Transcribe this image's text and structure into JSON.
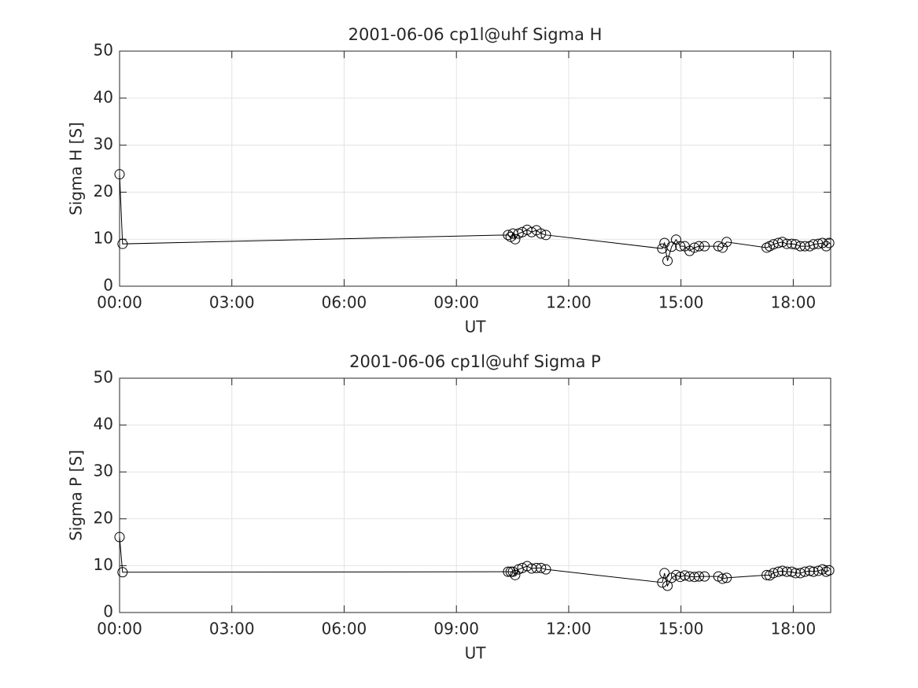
{
  "chart_data": [
    {
      "type": "line",
      "title": "2001-06-06  cp1l@uhf Sigma H",
      "x_label": "UT",
      "y_label": "Sigma H [S]",
      "x": [
        0.0,
        0.08,
        10.38,
        10.45,
        10.51,
        10.57,
        10.66,
        10.76,
        10.89,
        11.01,
        11.14,
        11.26,
        11.39,
        14.5,
        14.56,
        14.64,
        14.75,
        14.87,
        14.98,
        15.1,
        15.23,
        15.36,
        15.48,
        15.63,
        16.0,
        16.11,
        16.22,
        17.29,
        17.37,
        17.47,
        17.6,
        17.71,
        17.83,
        17.96,
        18.06,
        18.19,
        18.31,
        18.44,
        18.54,
        18.67,
        18.78,
        18.88,
        18.96
      ],
      "series": [
        {
          "name": "Sigma H",
          "color": "#000000",
          "values": [
            23.8,
            9.0,
            10.9,
            10.5,
            11.2,
            10.0,
            11.2,
            11.5,
            12.0,
            11.5,
            11.9,
            11.2,
            10.9,
            8.0,
            9.2,
            5.4,
            8.4,
            9.9,
            8.5,
            8.5,
            7.5,
            8.2,
            8.5,
            8.5,
            8.5,
            8.2,
            9.4,
            8.2,
            8.5,
            8.9,
            9.2,
            9.4,
            9.0,
            9.0,
            8.9,
            8.5,
            8.5,
            8.5,
            8.9,
            9.0,
            9.2,
            8.5,
            9.2
          ]
        }
      ],
      "xlim": [
        0,
        19
      ],
      "xticks": [
        {
          "value": 0,
          "label": "00:00"
        },
        {
          "value": 3,
          "label": "03:00"
        },
        {
          "value": 6,
          "label": "06:00"
        },
        {
          "value": 9,
          "label": "09:00"
        },
        {
          "value": 12,
          "label": "12:00"
        },
        {
          "value": 15,
          "label": "15:00"
        },
        {
          "value": 18,
          "label": "18:00"
        }
      ],
      "ylim": [
        0,
        50
      ],
      "yticks": [
        0,
        10,
        20,
        30,
        40,
        50
      ],
      "grid": true,
      "marker": "circle"
    },
    {
      "type": "line",
      "title": "2001-06-06  cp1l@uhf Sigma P",
      "x_label": "UT",
      "y_label": "Sigma P [S]",
      "x": [
        0.0,
        0.08,
        10.38,
        10.45,
        10.51,
        10.57,
        10.66,
        10.76,
        10.89,
        11.01,
        11.14,
        11.26,
        11.39,
        14.5,
        14.56,
        14.64,
        14.75,
        14.87,
        14.98,
        15.1,
        15.23,
        15.36,
        15.48,
        15.63,
        16.0,
        16.11,
        16.22,
        17.29,
        17.37,
        17.47,
        17.6,
        17.71,
        17.83,
        17.96,
        18.06,
        18.19,
        18.31,
        18.44,
        18.54,
        18.67,
        18.78,
        18.88,
        18.96
      ],
      "series": [
        {
          "name": "Sigma P",
          "color": "#000000",
          "values": [
            16.1,
            8.6,
            8.7,
            8.7,
            8.7,
            8.0,
            9.2,
            9.5,
            9.9,
            9.4,
            9.5,
            9.5,
            9.2,
            6.4,
            8.4,
            5.7,
            7.4,
            8.0,
            7.6,
            7.9,
            7.7,
            7.6,
            7.7,
            7.7,
            7.7,
            7.2,
            7.4,
            8.0,
            7.9,
            8.4,
            8.7,
            8.9,
            8.7,
            8.7,
            8.4,
            8.4,
            8.7,
            8.9,
            8.7,
            8.9,
            9.2,
            8.7,
            9.0
          ]
        }
      ],
      "xlim": [
        0,
        19
      ],
      "xticks": [
        {
          "value": 0,
          "label": "00:00"
        },
        {
          "value": 3,
          "label": "03:00"
        },
        {
          "value": 6,
          "label": "06:00"
        },
        {
          "value": 9,
          "label": "09:00"
        },
        {
          "value": 12,
          "label": "12:00"
        },
        {
          "value": 15,
          "label": "15:00"
        },
        {
          "value": 18,
          "label": "18:00"
        }
      ],
      "ylim": [
        0,
        50
      ],
      "yticks": [
        0,
        10,
        20,
        30,
        40,
        50
      ],
      "grid": true,
      "marker": "circle"
    }
  ]
}
